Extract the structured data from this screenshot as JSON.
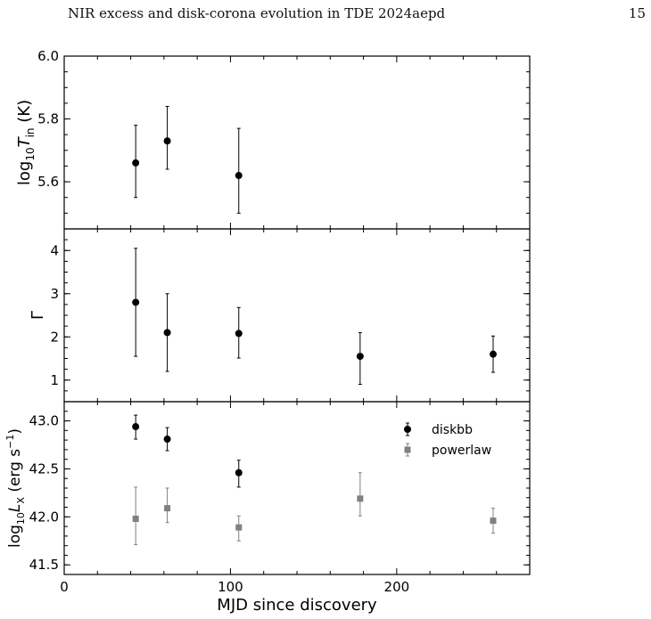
{
  "page": {
    "running_title": "NIR excess and disk-corona evolution in TDE 2024aepd",
    "page_number": "15"
  },
  "chart_data": [
    {
      "type": "scatter",
      "panel": "top",
      "xlabel": "",
      "ylabel": "log10 T_in (K)",
      "xlim": [
        0,
        280
      ],
      "ylim": [
        5.45,
        6.0
      ],
      "yticks": [
        "5.6",
        "5.8",
        "6.0"
      ],
      "series": [
        {
          "color": "#000000",
          "marker": "circle",
          "points": [
            {
              "x": 43,
              "y": 5.66,
              "yerr_low": 0.11,
              "yerr_high": 0.12
            },
            {
              "x": 62,
              "y": 5.73,
              "yerr_low": 0.09,
              "yerr_high": 0.11
            },
            {
              "x": 105,
              "y": 5.62,
              "yerr_low": 0.12,
              "yerr_high": 0.15
            }
          ]
        }
      ]
    },
    {
      "type": "scatter",
      "panel": "middle",
      "xlabel": "",
      "ylabel": "Γ",
      "xlim": [
        0,
        280
      ],
      "ylim": [
        0.5,
        4.5
      ],
      "yticks": [
        "1",
        "2",
        "3",
        "4"
      ],
      "series": [
        {
          "color": "#000000",
          "marker": "circle",
          "points": [
            {
              "x": 43,
              "y": 2.8,
              "yerr_low": 1.25,
              "yerr_high": 1.25
            },
            {
              "x": 62,
              "y": 2.1,
              "yerr_low": 0.9,
              "yerr_high": 0.9
            },
            {
              "x": 105,
              "y": 2.08,
              "yerr_low": 0.57,
              "yerr_high": 0.6
            },
            {
              "x": 178,
              "y": 1.55,
              "yerr_low": 0.65,
              "yerr_high": 0.55
            },
            {
              "x": 258,
              "y": 1.6,
              "yerr_low": 0.42,
              "yerr_high": 0.42
            }
          ]
        }
      ]
    },
    {
      "type": "scatter",
      "panel": "bottom",
      "xlabel": "MJD since discovery",
      "ylabel": "log10 L_X (erg s^-1)",
      "xlim": [
        0,
        280
      ],
      "ylim": [
        41.4,
        43.2
      ],
      "xticks": [
        "0",
        "100",
        "200"
      ],
      "yticks": [
        "41.5",
        "42.0",
        "42.5",
        "43.0"
      ],
      "legend": "top-right",
      "series": [
        {
          "name": "diskbb",
          "color": "#000000",
          "marker": "circle",
          "points": [
            {
              "x": 43,
              "y": 42.94,
              "yerr_low": 0.13,
              "yerr_high": 0.12
            },
            {
              "x": 62,
              "y": 42.81,
              "yerr_low": 0.12,
              "yerr_high": 0.12
            },
            {
              "x": 105,
              "y": 42.46,
              "yerr_low": 0.15,
              "yerr_high": 0.13
            }
          ]
        },
        {
          "name": "powerlaw",
          "color": "#808080",
          "marker": "square",
          "points": [
            {
              "x": 43,
              "y": 41.98,
              "yerr_low": 0.27,
              "yerr_high": 0.33
            },
            {
              "x": 62,
              "y": 42.09,
              "yerr_low": 0.15,
              "yerr_high": 0.21
            },
            {
              "x": 105,
              "y": 41.89,
              "yerr_low": 0.14,
              "yerr_high": 0.12
            },
            {
              "x": 178,
              "y": 42.19,
              "yerr_low": 0.18,
              "yerr_high": 0.27
            },
            {
              "x": 258,
              "y": 41.96,
              "yerr_low": 0.13,
              "yerr_high": 0.13
            }
          ]
        }
      ]
    }
  ]
}
